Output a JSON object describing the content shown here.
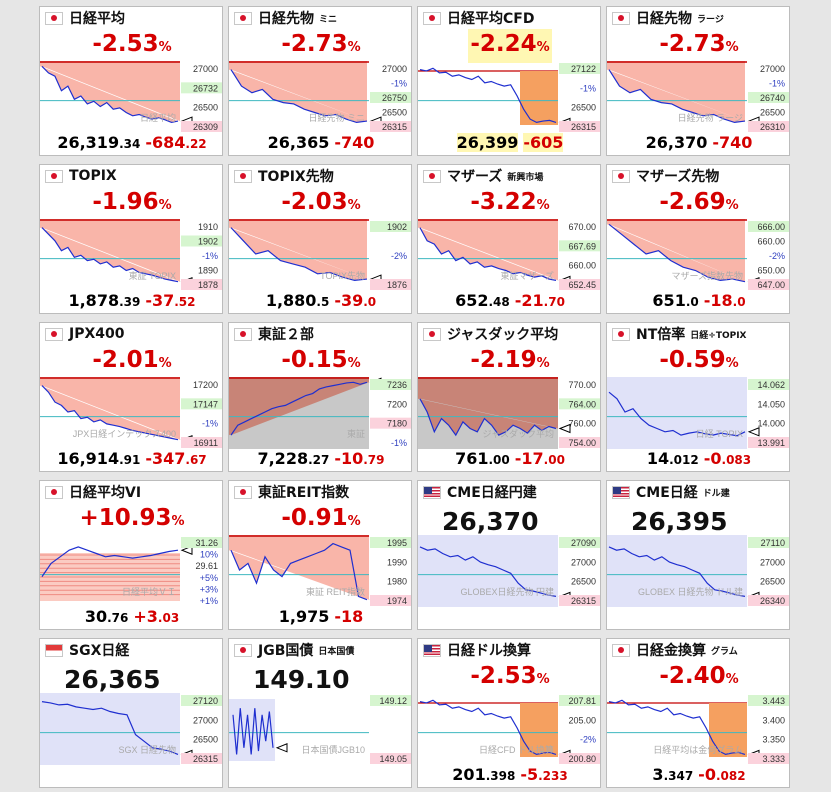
{
  "colors": {
    "down": "#d40000",
    "up": "#d40000",
    "line": "#1f2fd0",
    "fill_down": "#f8a89a",
    "cfd_box": "#f5a060",
    "band": "#e0e2f8",
    "tag_pos": "#d6f5cf",
    "tag_neg": "#fbd2dc",
    "ref_line": "#3fb8c0",
    "prev_line": "#c40000"
  },
  "tiles": [
    {
      "id": "nikkei",
      "flag": "jp",
      "name": "日経平均",
      "sub": "",
      "pct": "-2.53",
      "pct_suffix": "%",
      "main": "26,319",
      "main_dec": ".34",
      "chg": "-684",
      "chg_dec": ".22",
      "hl": false,
      "labels": [
        "27000",
        "26732",
        "26500",
        "26309"
      ],
      "tag_pos": "26732",
      "tag_neg": "26309",
      "watermark": "日経平均",
      "mode": "down",
      "trend": [
        0.05,
        0.15,
        0.2,
        0.42,
        0.35,
        0.55,
        0.5,
        0.62,
        0.58,
        0.66,
        0.6,
        0.7,
        0.68,
        0.75,
        0.8,
        0.78,
        0.82,
        0.85,
        0.83,
        0.86,
        0.9,
        0.88
      ]
    },
    {
      "id": "nikkei-mini",
      "flag": "jp",
      "name": "日経先物",
      "sub": "ミニ",
      "pct": "-2.73",
      "pct_suffix": "%",
      "main": "26,365",
      "main_dec": "",
      "chg": "-740",
      "chg_dec": "",
      "hl": false,
      "labels": [
        "27000",
        "-1%",
        "26750",
        "26500",
        "26315"
      ],
      "tag_pos": "26750",
      "tag_neg": "26315",
      "watermark": "日経先物 ミニ",
      "mode": "future",
      "trend": [
        0.1,
        0.35,
        0.45,
        0.4,
        0.55,
        0.6,
        0.62,
        0.7,
        0.75,
        0.8,
        0.78,
        0.85,
        0.9,
        0.88
      ]
    },
    {
      "id": "nikkei-cfd",
      "flag": "jp",
      "name": "日経平均CFD",
      "sub": "",
      "pct": "-2.24",
      "pct_suffix": "%",
      "main": "26,399",
      "main_dec": "",
      "chg": "-605",
      "chg_dec": "",
      "hl": true,
      "labels": [
        "27122",
        "-1%",
        "26500",
        "26315"
      ],
      "tag_pos": "27122",
      "tag_neg": "26315",
      "watermark": "",
      "mode": "cfd",
      "trend": [
        0.1,
        0.12,
        0.08,
        0.15,
        0.14,
        0.2,
        0.18,
        0.22,
        0.25,
        0.2,
        0.3,
        0.28,
        0.32,
        0.35,
        0.33,
        0.5,
        0.7,
        0.85,
        0.9,
        0.88,
        0.87,
        0.9
      ]
    },
    {
      "id": "nikkei-large",
      "flag": "jp",
      "name": "日経先物",
      "sub": "ラージ",
      "pct": "-2.73",
      "pct_suffix": "%",
      "main": "26,370",
      "main_dec": "",
      "chg": "-740",
      "chg_dec": "",
      "hl": false,
      "labels": [
        "27000",
        "-1%",
        "26740",
        "26500",
        "26310"
      ],
      "tag_pos": "26740",
      "tag_neg": "26310",
      "watermark": "日経先物 ラージ",
      "mode": "future",
      "trend": [
        0.1,
        0.35,
        0.45,
        0.4,
        0.55,
        0.6,
        0.62,
        0.7,
        0.75,
        0.8,
        0.78,
        0.85,
        0.9,
        0.88
      ]
    },
    {
      "id": "topix",
      "flag": "jp",
      "name": "TOPIX",
      "sub": "",
      "pct": "-1.96",
      "pct_suffix": "%",
      "main": "1,878",
      "main_dec": ".39",
      "chg": "-37",
      "chg_dec": ".52",
      "hl": false,
      "labels": [
        "1910",
        "1902",
        "-1%",
        "1890",
        "1878"
      ],
      "tag_pos": "1902",
      "tag_neg": "1878",
      "watermark": "東証 TOPIX",
      "mode": "down",
      "trend": [
        0.1,
        0.2,
        0.3,
        0.45,
        0.4,
        0.55,
        0.52,
        0.6,
        0.58,
        0.65,
        0.62,
        0.7,
        0.68,
        0.75,
        0.72,
        0.78,
        0.8,
        0.82,
        0.85,
        0.88,
        0.9,
        0.92
      ]
    },
    {
      "id": "topix-fut",
      "flag": "jp",
      "name": "TOPIX先物",
      "sub": "",
      "pct": "-2.03",
      "pct_suffix": "%",
      "main": "1,880",
      "main_dec": ".5",
      "chg": "-39",
      "chg_dec": ".0",
      "hl": false,
      "labels": [
        "1902",
        "-2%",
        "1876"
      ],
      "tag_pos": "1902",
      "tag_neg": "1876",
      "watermark": "TOPIX先物",
      "mode": "future",
      "trend": [
        0.1,
        0.3,
        0.5,
        0.45,
        0.6,
        0.65,
        0.7,
        0.8,
        0.78,
        0.85,
        0.9,
        0.88
      ]
    },
    {
      "id": "mothers",
      "flag": "jp",
      "name": "マザーズ",
      "sub": "新興市場",
      "pct": "-3.22",
      "pct_suffix": "%",
      "main": "652",
      "main_dec": ".48",
      "chg": "-21",
      "chg_dec": ".70",
      "hl": false,
      "labels": [
        "670.00",
        "667.69",
        "660.00",
        "652.45"
      ],
      "tag_pos": "667.69",
      "tag_neg": "652.45",
      "watermark": "東証マザーズ",
      "mode": "down",
      "trend": [
        0.1,
        0.3,
        0.35,
        0.5,
        0.45,
        0.6,
        0.55,
        0.65,
        0.62,
        0.7,
        0.68,
        0.72,
        0.75,
        0.8,
        0.78,
        0.82,
        0.85,
        0.83,
        0.88,
        0.9
      ]
    },
    {
      "id": "mothers-fut",
      "flag": "jp",
      "name": "マザーズ先物",
      "sub": "",
      "pct": "-2.69",
      "pct_suffix": "%",
      "main": "651",
      "main_dec": ".0",
      "chg": "-18",
      "chg_dec": ".0",
      "hl": false,
      "labels": [
        "666.00",
        "660.00",
        "-2%",
        "650.00",
        "647.00"
      ],
      "tag_pos": "666.00",
      "tag_neg": "647.00",
      "watermark": "マザーズ指数先物",
      "mode": "future",
      "trend": [
        0.05,
        0.2,
        0.35,
        0.5,
        0.45,
        0.6,
        0.7,
        0.75,
        0.85,
        0.9,
        0.88,
        0.92
      ]
    },
    {
      "id": "jpx400",
      "flag": "jp",
      "name": "JPX400",
      "sub": "",
      "pct": "-2.01",
      "pct_suffix": "%",
      "main": "16,914",
      "main_dec": ".91",
      "chg": "-347",
      "chg_dec": ".67",
      "hl": false,
      "labels": [
        "17200",
        "17147",
        "-1%",
        "16911"
      ],
      "tag_pos": "17147",
      "tag_neg": "16911",
      "watermark": "JPX日経インデックス400",
      "mode": "down",
      "trend": [
        0.1,
        0.2,
        0.35,
        0.4,
        0.5,
        0.48,
        0.6,
        0.58,
        0.65,
        0.62,
        0.68,
        0.7,
        0.72,
        0.75,
        0.78,
        0.8,
        0.82,
        0.84,
        0.86,
        0.88,
        0.9,
        0.92
      ]
    },
    {
      "id": "tse2",
      "flag": "jp",
      "name": "東証２部",
      "sub": "",
      "pct": "-0.15",
      "pct_suffix": "%",
      "main": "7,228",
      "main_dec": ".27",
      "chg": "-10",
      "chg_dec": ".79",
      "hl": false,
      "labels": [
        "7236",
        "7200",
        "7180",
        "-1%"
      ],
      "tag_pos": "7236",
      "tag_neg": "7180",
      "watermark": "東証",
      "mode": "up",
      "trend": [
        0.85,
        0.7,
        0.65,
        0.6,
        0.55,
        0.5,
        0.45,
        0.42,
        0.4,
        0.35,
        0.3,
        0.25,
        0.22,
        0.15,
        0.12,
        0.1,
        0.08,
        0.06,
        0.05,
        0.08,
        0.05
      ]
    },
    {
      "id": "jasdaq",
      "flag": "jp",
      "name": "ジャスダック平均",
      "sub": "",
      "pct": "-2.19",
      "pct_suffix": "%",
      "main": "761",
      "main_dec": ".00",
      "chg": "-17",
      "chg_dec": ".00",
      "hl": false,
      "labels": [
        "770.00",
        "764.00",
        "760.00",
        "754.00"
      ],
      "tag_pos": "764.00",
      "tag_neg": "754.00",
      "watermark": "ジャスダック平均",
      "mode": "jasdaq",
      "trend": [
        0.3,
        0.5,
        0.8,
        0.6,
        0.7,
        0.85,
        0.65,
        0.75,
        0.8,
        0.6,
        0.7,
        0.85,
        0.8,
        0.7,
        0.75,
        0.82,
        0.7,
        0.78,
        0.72,
        0.75
      ]
    },
    {
      "id": "nt-ratio",
      "flag": "jp",
      "name": "NT倍率",
      "sub": "日経÷TOPIX",
      "pct": "-0.59",
      "pct_suffix": "%",
      "main": "14",
      "main_dec": ".012",
      "chg": "-0",
      "chg_dec": ".083",
      "hl": false,
      "labels": [
        "14.062",
        "14.050",
        "14.000",
        "13.991"
      ],
      "tag_pos": "14.062",
      "tag_neg": "13.991",
      "watermark": "日経 TOPIX",
      "mode": "band",
      "trend": [
        0.2,
        0.3,
        0.5,
        0.45,
        0.6,
        0.7,
        0.75,
        0.8,
        0.78,
        0.85,
        0.82,
        0.8,
        0.83,
        0.85,
        0.82,
        0.84,
        0.86,
        0.8
      ]
    },
    {
      "id": "nikkei-vi",
      "flag": "jp",
      "name": "日経平均VI",
      "sub": "",
      "pct": "+10.93",
      "pct_suffix": "%",
      "main": "30",
      "main_dec": ".76",
      "chg": "+3",
      "chg_dec": ".03",
      "hl": false,
      "labels": [
        "31.26",
        "10%",
        "29.61",
        "+5%",
        "+3%",
        "+1%"
      ],
      "tag_pos": "31.26",
      "tag_neg": "",
      "watermark": "日経平均ＶＩ",
      "mode": "vi",
      "trend": [
        0.6,
        0.4,
        0.3,
        0.2,
        0.15,
        0.2,
        0.25,
        0.3,
        0.28,
        0.3,
        0.32,
        0.3,
        0.28,
        0.25,
        0.22,
        0.2
      ]
    },
    {
      "id": "reit",
      "flag": "jp",
      "name": "東証REIT指数",
      "sub": "",
      "pct": "-0.91",
      "pct_suffix": "%",
      "main": "1,975",
      "main_dec": "",
      "chg": "-18",
      "chg_dec": "",
      "hl": false,
      "labels": [
        "1995",
        "1990",
        "1980",
        "1974"
      ],
      "tag_pos": "1995",
      "tag_neg": "1974",
      "watermark": "東証 REIT指数",
      "mode": "reit",
      "trend": [
        0.2,
        0.5,
        0.4,
        0.7,
        0.3,
        0.5,
        0.6,
        0.4,
        0.35,
        0.3,
        0.25,
        0.2,
        0.1,
        0.15,
        0.2,
        0.9,
        0.95
      ]
    },
    {
      "id": "cme-yen",
      "flag": "us",
      "name": "CME日経円建",
      "sub": "",
      "pct": "",
      "pct_suffix": "",
      "bigval": "26,370",
      "main": "",
      "main_dec": "",
      "chg": "",
      "chg_dec": "",
      "hl": false,
      "labels": [
        "27090",
        "27000",
        "26500",
        "26315"
      ],
      "tag_pos": "27090",
      "tag_neg": "26315",
      "watermark": "GLOBEX日経先物 円建",
      "mode": "band",
      "trend": [
        0.15,
        0.2,
        0.18,
        0.25,
        0.3,
        0.28,
        0.35,
        0.3,
        0.38,
        0.42,
        0.45,
        0.5,
        0.55,
        0.7,
        0.8,
        0.82,
        0.85,
        0.88,
        0.9
      ]
    },
    {
      "id": "cme-usd",
      "flag": "us",
      "name": "CME日経",
      "sub": "ドル建",
      "pct": "",
      "pct_suffix": "",
      "bigval": "26,395",
      "main": "",
      "main_dec": "",
      "chg": "",
      "chg_dec": "",
      "hl": false,
      "labels": [
        "27110",
        "27000",
        "26500",
        "26340"
      ],
      "tag_pos": "27110",
      "tag_neg": "26340",
      "watermark": "GLOBEX 日経先物 ドル建",
      "mode": "band",
      "trend": [
        0.15,
        0.2,
        0.18,
        0.25,
        0.3,
        0.28,
        0.35,
        0.3,
        0.38,
        0.42,
        0.45,
        0.5,
        0.55,
        0.7,
        0.8,
        0.82,
        0.85,
        0.88,
        0.9
      ]
    },
    {
      "id": "sgx",
      "flag": "sg",
      "name": "SGX日経",
      "sub": "",
      "pct": "",
      "pct_suffix": "",
      "bigval": "26,365",
      "main": "",
      "main_dec": "",
      "chg": "",
      "chg_dec": "",
      "hl": false,
      "labels": [
        "27120",
        "27000",
        "26500",
        "26315"
      ],
      "tag_pos": "27120",
      "tag_neg": "26315",
      "watermark": "SGX 日経先物",
      "mode": "band",
      "trend": [
        0.1,
        0.12,
        0.15,
        0.14,
        0.18,
        0.2,
        0.22,
        0.2,
        0.25,
        0.28,
        0.3,
        0.6,
        0.7,
        0.8,
        0.82,
        0.85,
        0.9
      ]
    },
    {
      "id": "jgb",
      "flag": "jp",
      "name": "JGB国債",
      "sub": "日本国債",
      "pct": "",
      "pct_suffix": "",
      "bigval": "149.10",
      "main": "",
      "main_dec": "",
      "chg": "",
      "chg_dec": "",
      "hl": false,
      "labels": [
        "149.12",
        "149.05"
      ],
      "tag_pos": "149.12",
      "tag_neg": "149.05",
      "watermark": "日本国債JGB10",
      "mode": "jgb",
      "trend": [
        0.3,
        0.9,
        0.2,
        0.8,
        0.3,
        0.9,
        0.2,
        0.85,
        0.3,
        0.7,
        0.25,
        0.8
      ]
    },
    {
      "id": "nikkei-usd",
      "flag": "us",
      "name": "日経ドル換算",
      "sub": "",
      "pct": "-2.53",
      "pct_suffix": "%",
      "main": "201",
      "main_dec": ".398",
      "chg": "-5",
      "chg_dec": ".233",
      "hl": false,
      "labels": [
        "207.81",
        "205.00",
        "-2%",
        "200.80"
      ],
      "tag_pos": "207.81",
      "tag_neg": "200.80",
      "watermark": "日経CFD ドル換算",
      "mode": "cfd",
      "trend": [
        0.1,
        0.12,
        0.08,
        0.15,
        0.14,
        0.2,
        0.18,
        0.22,
        0.25,
        0.2,
        0.3,
        0.28,
        0.32,
        0.35,
        0.33,
        0.5,
        0.7,
        0.85,
        0.9,
        0.88,
        0.87,
        0.9
      ]
    },
    {
      "id": "nikkei-gold",
      "flag": "jp",
      "name": "日経金換算",
      "sub": "グラム",
      "pct": "-2.40",
      "pct_suffix": "%",
      "main": "3",
      "main_dec": ".347",
      "chg": "-0",
      "chg_dec": ".082",
      "hl": false,
      "labels": [
        "3.443",
        "3.400",
        "3.350",
        "3.333"
      ],
      "tag_pos": "3.443",
      "tag_neg": "3.333",
      "watermark": "日経平均は金何グラム",
      "mode": "cfd",
      "trend": [
        0.1,
        0.12,
        0.08,
        0.15,
        0.14,
        0.2,
        0.18,
        0.22,
        0.25,
        0.2,
        0.3,
        0.28,
        0.32,
        0.35,
        0.33,
        0.5,
        0.7,
        0.85,
        0.9,
        0.88,
        0.87,
        0.9
      ]
    }
  ]
}
